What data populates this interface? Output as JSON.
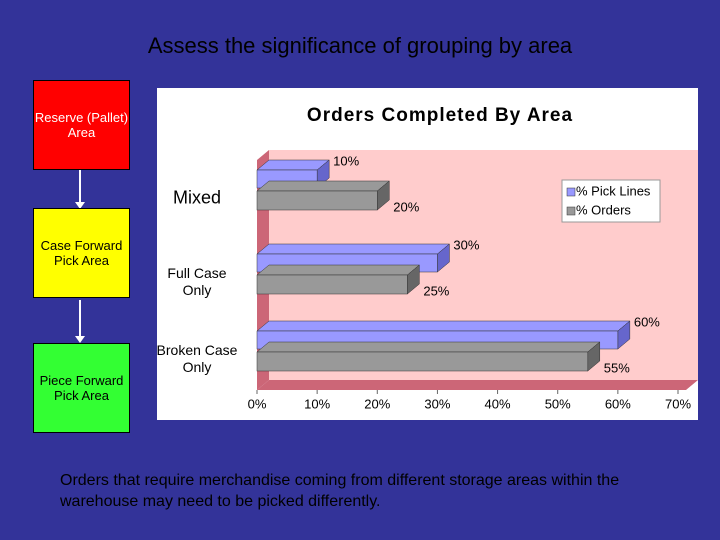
{
  "slide_title": "Assess the significance of grouping by area",
  "flow": {
    "boxes": [
      {
        "label": "Reserve (Pallet) Area",
        "color": "#ff0000"
      },
      {
        "label": "Case Forward Pick Area",
        "color": "#ffff00"
      },
      {
        "label": "Piece Forward Pick Area",
        "color": "#33ff33"
      }
    ]
  },
  "chart_data": {
    "type": "bar",
    "orientation": "horizontal",
    "title": "Orders Completed By Area",
    "categories": [
      "Mixed",
      "Full Case Only",
      "Broken Case Only"
    ],
    "series": [
      {
        "name": "% Pick Lines",
        "color": "#9999ff",
        "values": [
          10,
          30,
          60
        ],
        "value_labels": [
          "10%",
          "30%",
          "60%"
        ]
      },
      {
        "name": "% Orders",
        "color": "#999999",
        "values": [
          20,
          25,
          55
        ],
        "value_labels": [
          "20%",
          "25%",
          "55%"
        ]
      }
    ],
    "xlim": [
      0,
      70
    ],
    "xticks": [
      {
        "value": 0,
        "label": "0%"
      },
      {
        "value": 10,
        "label": "10%"
      },
      {
        "value": 20,
        "label": "20%"
      },
      {
        "value": 30,
        "label": "30%"
      },
      {
        "value": 40,
        "label": "40%"
      },
      {
        "value": 50,
        "label": "50%"
      },
      {
        "value": 60,
        "label": "60%"
      },
      {
        "value": 70,
        "label": "70%"
      }
    ],
    "legend": "upper right"
  },
  "caption": "Orders that require merchandise coming from different storage areas within the warehouse may need to be picked differently."
}
